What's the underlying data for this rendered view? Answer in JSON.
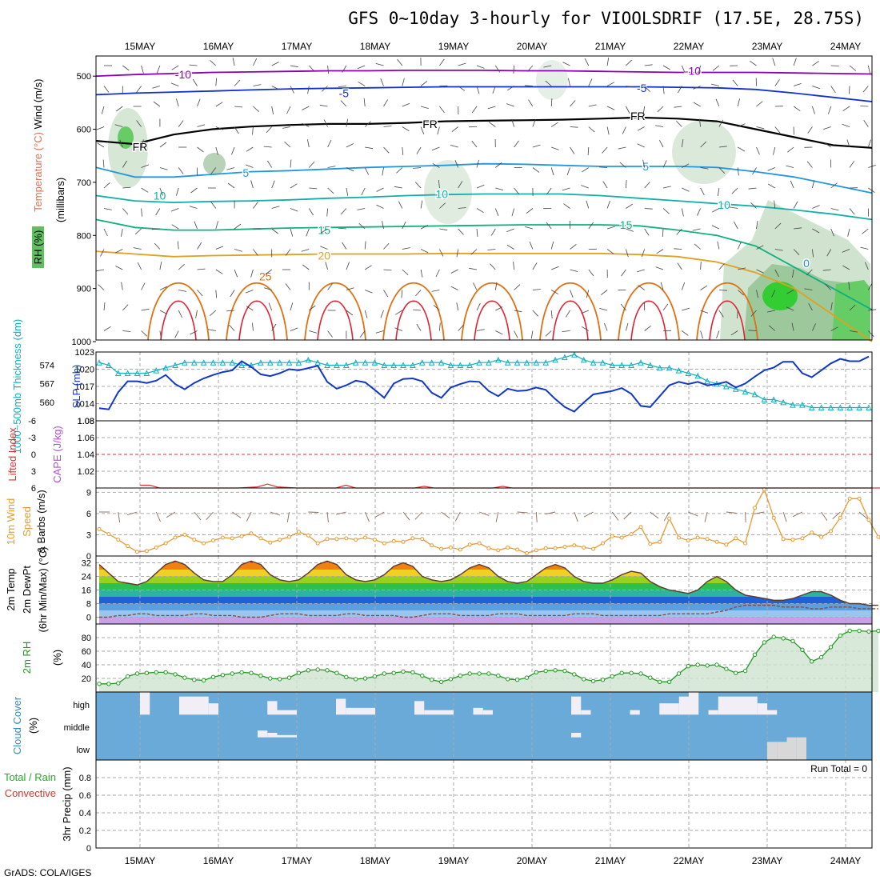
{
  "title": "GFS 0~10day 3-hourly for VIOOLSDRIF (17.5E, 28.75S)",
  "footer": "GrADS: COLA/IGES",
  "dates": [
    "15MAY",
    "16MAY",
    "17MAY",
    "18MAY",
    "19MAY",
    "20MAY",
    "21MAY",
    "22MAY",
    "23MAY",
    "24MAY"
  ],
  "colors": {
    "wind_purple": "#8b00b5",
    "wind_blue": "#1030d0",
    "temp_blue": "#2098e0",
    "temp_teal": "#10b0a8",
    "temp_green": "#10b080",
    "temp_orange": "#e0a020",
    "temp_dark_orange": "#e07010",
    "temp_red": "#e02030",
    "freezing": "#000000",
    "slp": "#1038c8",
    "thickness": "#10b0c0",
    "lifted": "#e03030",
    "cape": "#b050d0",
    "wind10m": "#e89a30",
    "rh2m": "#229922",
    "cloud_bg": "#6aaad8",
    "cloud_fill": "#f2eef6"
  },
  "chart_data": [
    {
      "type": "contour",
      "panel": "upper-air",
      "ylabel_parts": [
        "Wind (m/s)",
        "Temperature (°C)",
        "RH (%)"
      ],
      "ylabel_unit": "(millibars)",
      "y_ticks": [
        500,
        600,
        700,
        800,
        900,
        1000
      ],
      "ylim": [
        1000,
        450
      ],
      "contour_levels": [
        -10,
        -5,
        0,
        5,
        10,
        15,
        20,
        25,
        30
      ],
      "contour_labels": [
        {
          "text": "-10",
          "day": 0.55,
          "p": 497
        },
        {
          "text": "-10",
          "day": 7.05,
          "p": 490
        },
        {
          "text": "-5",
          "day": 2.6,
          "p": 532
        },
        {
          "text": "-5",
          "day": 6.4,
          "p": 522
        },
        {
          "text": "FR",
          "day": 0.0,
          "p": 633
        },
        {
          "text": "FR",
          "day": 3.7,
          "p": 590
        },
        {
          "text": "FR",
          "day": 6.35,
          "p": 575
        },
        {
          "text": "5",
          "day": 1.35,
          "p": 682
        },
        {
          "text": "5",
          "day": 6.45,
          "p": 670
        },
        {
          "text": "10",
          "day": 0.25,
          "p": 725
        },
        {
          "text": "10",
          "day": 3.85,
          "p": 722
        },
        {
          "text": "10",
          "day": 7.45,
          "p": 742
        },
        {
          "text": "15",
          "day": 2.35,
          "p": 790
        },
        {
          "text": "15",
          "day": 6.2,
          "p": 780
        },
        {
          "text": "20",
          "day": 2.35,
          "p": 838
        },
        {
          "text": "25",
          "day": 1.6,
          "p": 877
        },
        {
          "text": "0",
          "day": 8.5,
          "p": 852
        }
      ]
    },
    {
      "type": "line",
      "panel": "slp-thickness",
      "ylabel": "SLP (mb)",
      "ylabel2": "1000~500mb Thickness (dm)",
      "ylim": [
        1011,
        1023
      ],
      "y_ticks": [
        1014,
        1017,
        1020,
        1023
      ],
      "y2_ticks": [
        560,
        567,
        574
      ],
      "series": [
        {
          "name": "SLP",
          "values": [
            1013.2,
            1013,
            1016,
            1017.9,
            1017.9,
            1017.6,
            1018,
            1019,
            1017.4,
            1016.5,
            1017.6,
            1018.4,
            1019,
            1019.5,
            1019.8,
            1021.4,
            1020.4,
            1019.1,
            1018.8,
            1019.3,
            1020,
            1019.8,
            1020.2,
            1020.6,
            1017.8,
            1016.6,
            1017.2,
            1018,
            1017.7,
            1016.4,
            1015,
            1017.5,
            1018.3,
            1018.4,
            1017.9,
            1015.9,
            1015,
            1016.8,
            1017.4,
            1017.9,
            1017.8,
            1016.2,
            1015.3,
            1016.6,
            1016.2,
            1016.3,
            1016.8,
            1016.4,
            1014.8,
            1013.4,
            1012.6,
            1014.2,
            1015.6,
            1015.9,
            1016.2,
            1016.7,
            1015.7,
            1013.6,
            1013.4,
            1015.3,
            1017.2,
            1017.8,
            1017.4,
            1017.8,
            1017.2,
            1017.4,
            1017.8,
            1016.8,
            1017.5,
            1018.7,
            1019.8,
            1020.3,
            1021.3,
            1021.3,
            1019.3,
            1018.6,
            1019.8,
            1021,
            1021.8,
            1021.4,
            1021.4,
            1022.2
          ]
        },
        {
          "name": "Thickness",
          "values": [
            575,
            574,
            571,
            571,
            571,
            571,
            572,
            573,
            574,
            575,
            575,
            575,
            575,
            575,
            575,
            574,
            574,
            575,
            575,
            575,
            575,
            575,
            576,
            575,
            574,
            574,
            574,
            575,
            575,
            575,
            574,
            574,
            574,
            574,
            575,
            575,
            575,
            574,
            574,
            574,
            575,
            575,
            576,
            575,
            575,
            575,
            575,
            575,
            576,
            577,
            578,
            576,
            575,
            575,
            574,
            574,
            574,
            575,
            574,
            573,
            573,
            572,
            571,
            570,
            568,
            567,
            566,
            565,
            564,
            563,
            561,
            561,
            560,
            559,
            559,
            558,
            558,
            558,
            558,
            558,
            558,
            558
          ]
        }
      ]
    },
    {
      "type": "line",
      "panel": "stability",
      "ylabel": "CAPE (J/kg)",
      "ylabel2": "Lifted Index",
      "ylim": [
        1.0,
        1.08
      ],
      "y_ticks": [
        1.02,
        1.04,
        1.06,
        1.08
      ],
      "y2_ticks": [
        "6",
        "3",
        "0",
        "-3",
        "-6"
      ],
      "series": [
        {
          "name": "Lifted Index",
          "points": [
            [
              0.0,
              5.5
            ],
            [
              0.125,
              5.5
            ],
            [
              0.25,
              6.0
            ],
            [
              0.75,
              6.0
            ],
            [
              1.0,
              6.0
            ],
            [
              1.25,
              6.0
            ],
            [
              1.5,
              5.8
            ],
            [
              1.625,
              5.3
            ],
            [
              1.75,
              5.8
            ],
            [
              2.0,
              6.0
            ],
            [
              2.5,
              6.0
            ],
            [
              2.625,
              5.5
            ],
            [
              2.75,
              6.0
            ],
            [
              3.0,
              6.0
            ],
            [
              3.5,
              6.0
            ],
            [
              3.625,
              5.7
            ],
            [
              3.75,
              6.0
            ],
            [
              4.5,
              6.0
            ],
            [
              4.625,
              5.7
            ],
            [
              4.75,
              6.0
            ],
            [
              9.75,
              6.0
            ]
          ]
        }
      ]
    },
    {
      "type": "line",
      "panel": "wind10m",
      "ylabel": "10m Wind Speed & Barbs (m/s)",
      "ylim": [
        0,
        9
      ],
      "y_ticks": [
        0,
        3,
        6,
        9
      ],
      "series": [
        {
          "name": "10m Wind Speed",
          "values": [
            3.8,
            3.1,
            2.3,
            1.4,
            0.6,
            0.7,
            1.2,
            1.8,
            2.6,
            3,
            2.3,
            1.8,
            2.2,
            2.6,
            2.5,
            2.8,
            3.2,
            2.5,
            1.9,
            2.3,
            2.7,
            3.4,
            2.9,
            1.8,
            2.4,
            2.4,
            2.5,
            2.3,
            2.6,
            2.3,
            1.8,
            2.1,
            2,
            2.5,
            2.4,
            1.5,
            1,
            1.2,
            0.9,
            1.6,
            1.8,
            1.1,
            0.8,
            1.2,
            0.9,
            0.4,
            0.8,
            1.1,
            1.1,
            1.3,
            1.5,
            1.2,
            1,
            1.8,
            2.8,
            2.6,
            3.1,
            4.1,
            1.7,
            2,
            5.3,
            2.6,
            2.2,
            2.6,
            2.4,
            2,
            1.6,
            2.5,
            1.8,
            6.8,
            9.4,
            5.4,
            2.4,
            2.3,
            2.5,
            3.3,
            2.7,
            3.5,
            5.4,
            8.1,
            8.1,
            5.1,
            2.7,
            1.3,
            0.9
          ]
        }
      ]
    },
    {
      "type": "area",
      "panel": "temperature2m",
      "ylabel": "2m Temp 2m DewPt (6hr Min/Max) (°C)",
      "ylim": [
        -4,
        36
      ],
      "y_ticks": [
        0,
        8,
        16,
        24,
        32
      ],
      "series": [
        {
          "name": "2m Temp",
          "values": [
            31,
            26,
            21,
            20,
            19,
            21,
            26,
            31,
            33,
            31,
            26,
            22,
            21,
            21,
            25,
            31,
            33,
            31,
            25,
            22,
            21,
            22,
            26,
            31,
            33,
            31,
            25,
            22,
            21,
            22,
            25,
            30,
            32,
            30,
            24,
            22,
            21,
            22,
            25,
            29,
            31,
            29,
            24,
            21,
            20,
            21,
            25,
            29,
            31,
            29,
            24,
            21,
            20,
            20,
            22,
            25,
            27,
            26,
            21,
            18,
            16,
            15,
            14,
            16,
            21,
            24,
            21,
            16,
            13,
            12,
            11,
            10,
            10,
            11,
            13,
            15,
            15,
            13,
            10,
            8,
            8,
            7,
            7
          ]
        },
        {
          "name": "2m DewPt",
          "values": [
            0,
            0,
            1,
            1,
            2,
            2,
            1,
            1,
            1,
            1,
            2,
            2,
            1,
            1,
            1,
            0,
            0,
            0,
            1,
            2,
            2,
            2,
            1,
            1,
            1,
            1,
            2,
            2,
            1,
            1,
            1,
            1,
            0,
            0,
            1,
            2,
            2,
            2,
            1,
            1,
            1,
            1,
            2,
            2,
            2,
            1,
            1,
            1,
            1,
            1,
            2,
            2,
            2,
            1,
            1,
            1,
            1,
            1,
            1,
            1,
            2,
            2,
            2,
            2,
            2,
            3,
            4,
            6,
            7,
            7,
            7,
            7,
            6,
            6,
            6,
            5,
            5,
            6,
            6,
            6,
            5,
            5,
            5
          ]
        }
      ]
    },
    {
      "type": "area",
      "panel": "rh2m",
      "ylabel": "2m RH (%)",
      "ylim": [
        0,
        100
      ],
      "y_ticks": [
        20,
        40,
        60,
        80
      ],
      "series": [
        {
          "name": "2m RH",
          "values": [
            12,
            12,
            13,
            23,
            27,
            28,
            29,
            29,
            26,
            21,
            18,
            17,
            22,
            25,
            27,
            29,
            28,
            24,
            20,
            19,
            21,
            28,
            32,
            33,
            32,
            28,
            22,
            19,
            20,
            23,
            27,
            28,
            30,
            29,
            24,
            18,
            15,
            19,
            24,
            27,
            27,
            27,
            24,
            19,
            18,
            21,
            29,
            31,
            32,
            31,
            26,
            19,
            16,
            18,
            23,
            28,
            28,
            27,
            21,
            15,
            15,
            27,
            38,
            40,
            39,
            40,
            34,
            28,
            31,
            55,
            73,
            81,
            79,
            75,
            62,
            45,
            51,
            66,
            83,
            90,
            90,
            89,
            90
          ]
        }
      ]
    },
    {
      "type": "bar",
      "panel": "cloudcover",
      "ylabel": "Cloud Cover (%)",
      "levels": [
        "high",
        "middle",
        "low"
      ],
      "series": [
        {
          "name": "high",
          "bars": [
            [
              0,
              0.125,
              100
            ],
            [
              0.5,
              0.875,
              80
            ],
            [
              0.875,
              1.0,
              50
            ],
            [
              1.625,
              1.75,
              60
            ],
            [
              1.75,
              2.0,
              20
            ],
            [
              2.5,
              2.625,
              70
            ],
            [
              2.625,
              3.0,
              30
            ],
            [
              3.5,
              3.625,
              60
            ],
            [
              3.625,
              4.0,
              20
            ],
            [
              4.25,
              4.375,
              30
            ],
            [
              4.375,
              4.5,
              20
            ],
            [
              5.5,
              5.625,
              80
            ],
            [
              5.625,
              5.75,
              20
            ],
            [
              6.25,
              6.375,
              20
            ],
            [
              6.625,
              6.75,
              50
            ],
            [
              6.75,
              6.875,
              50
            ],
            [
              6.875,
              7.0,
              80
            ],
            [
              7.0,
              7.125,
              100
            ],
            [
              7.25,
              7.375,
              20
            ],
            [
              7.375,
              7.875,
              80
            ],
            [
              7.875,
              8.0,
              50
            ],
            [
              8.0,
              8.125,
              20
            ]
          ]
        },
        {
          "name": "middle",
          "bars": [
            [
              1.5,
              1.625,
              30
            ],
            [
              1.625,
              1.75,
              20
            ],
            [
              1.75,
              2.0,
              10
            ],
            [
              5.5,
              5.625,
              20
            ]
          ]
        },
        {
          "name": "low",
          "bars": [
            [
              8.0,
              8.125,
              80
            ],
            [
              8.125,
              8.25,
              80
            ],
            [
              8.25,
              8.375,
              100
            ],
            [
              8.375,
              8.5,
              100
            ]
          ]
        }
      ]
    },
    {
      "type": "bar",
      "panel": "precip",
      "ylabel": "3hr Precip (mm)",
      "ylabel_parts": [
        "Total / Rain",
        "Convective"
      ],
      "ylim": [
        0,
        1
      ],
      "y_ticks": [
        0,
        0.2,
        0.4,
        0.6,
        0.8
      ],
      "run_total": "Run Total = 0",
      "values": []
    }
  ]
}
